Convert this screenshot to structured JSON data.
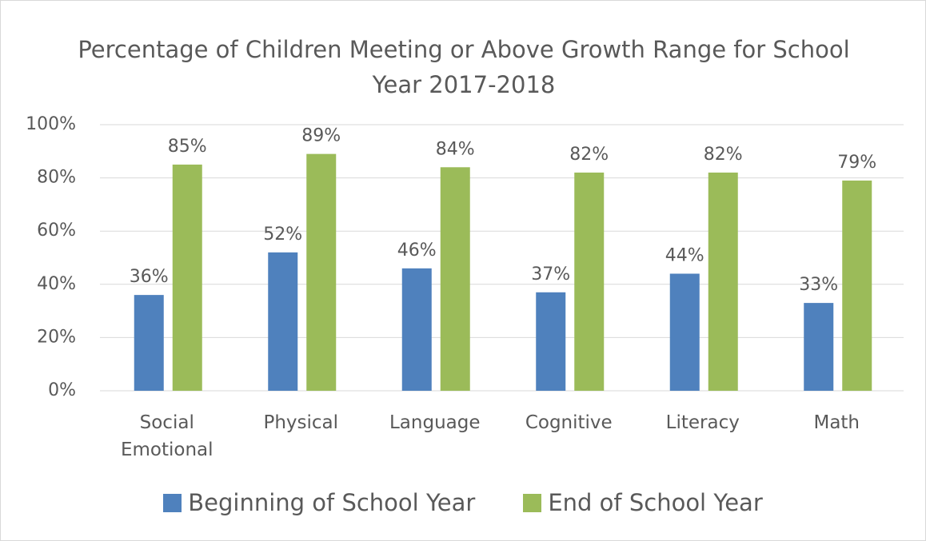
{
  "chart_data": {
    "type": "bar",
    "title": "Percentage of Children Meeting or Above Growth Range for School Year 2017-2018",
    "categories": [
      "Social Emotional",
      "Physical",
      "Language",
      "Cognitive",
      "Literacy",
      "Math"
    ],
    "series": [
      {
        "name": "Beginning of School Year",
        "color": "#4f81bd",
        "values": [
          36,
          52,
          46,
          37,
          44,
          33
        ],
        "value_labels": [
          "36%",
          "52%",
          "46%",
          "37%",
          "44%",
          "33%"
        ]
      },
      {
        "name": "End of School Year",
        "color": "#9bbb59",
        "values": [
          85,
          89,
          84,
          82,
          82,
          79
        ],
        "value_labels": [
          "85%",
          "89%",
          "84%",
          "82%",
          "82%",
          "79%"
        ]
      }
    ],
    "ylim": [
      0,
      100
    ],
    "yticks": [
      {
        "value": 0,
        "label": "0%"
      },
      {
        "value": 20,
        "label": "20%"
      },
      {
        "value": 40,
        "label": "40%"
      },
      {
        "value": 60,
        "label": "60%"
      },
      {
        "value": 80,
        "label": "80%"
      },
      {
        "value": 100,
        "label": "100%"
      }
    ],
    "grid": true,
    "legend": "bottom"
  }
}
